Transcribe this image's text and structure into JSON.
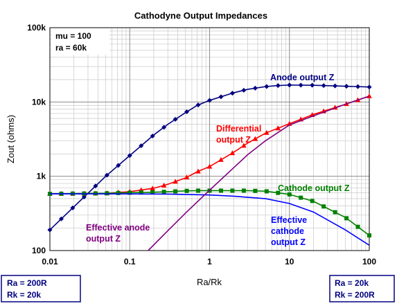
{
  "chart_data": {
    "type": "line",
    "title": "Cathodyne Output Impedances",
    "xlabel": "Ra/Rk",
    "ylabel": "Zout (ohms)",
    "x_scale": "log",
    "y_scale": "log",
    "xlim": [
      0.01,
      100
    ],
    "ylim": [
      100,
      100000
    ],
    "grid": true,
    "x_ticks": [
      "0.01",
      "0.1",
      "1",
      "10",
      "100"
    ],
    "y_ticks": [
      "100",
      "1k",
      "10k",
      "100k"
    ],
    "params": [
      "mu = 100",
      "ra = 60k"
    ],
    "corner_labels": {
      "left": [
        "Ra = 200R",
        "Rk = 20k"
      ],
      "right": [
        "Ra = 20k",
        "Rk = 200R"
      ]
    },
    "series": [
      {
        "name": "Anode output Z",
        "color": "#000080",
        "marker": "diamond",
        "points": [
          [
            0.01,
            190
          ],
          [
            0.05,
            1000
          ],
          [
            0.1,
            1900
          ],
          [
            0.2,
            3600
          ],
          [
            0.3,
            5000
          ],
          [
            0.5,
            7200
          ],
          [
            0.7,
            9000
          ],
          [
            1,
            10500
          ],
          [
            2,
            13300
          ],
          [
            3,
            14800
          ],
          [
            5,
            16100
          ],
          [
            7,
            16600
          ],
          [
            10,
            16900
          ],
          [
            20,
            16800
          ],
          [
            50,
            16300
          ],
          [
            100,
            15900
          ]
        ]
      },
      {
        "name": "Differential output Z",
        "color": "#ff0000",
        "marker": "triangle",
        "points": [
          [
            0.01,
            580
          ],
          [
            0.05,
            590
          ],
          [
            0.1,
            620
          ],
          [
            0.2,
            690
          ],
          [
            0.3,
            780
          ],
          [
            0.5,
            950
          ],
          [
            0.7,
            1150
          ],
          [
            1,
            1350
          ],
          [
            2,
            2100
          ],
          [
            3,
            2800
          ],
          [
            5,
            3800
          ],
          [
            10,
            5100
          ],
          [
            20,
            6800
          ],
          [
            50,
            9300
          ],
          [
            100,
            12000
          ]
        ]
      },
      {
        "name": "Cathode output Z",
        "color": "#008000",
        "marker": "square",
        "points": [
          [
            0.01,
            580
          ],
          [
            0.05,
            590
          ],
          [
            0.1,
            600
          ],
          [
            0.2,
            610
          ],
          [
            0.3,
            620
          ],
          [
            0.5,
            635
          ],
          [
            0.7,
            640
          ],
          [
            1,
            640
          ],
          [
            2,
            640
          ],
          [
            3,
            640
          ],
          [
            5,
            630
          ],
          [
            7,
            600
          ],
          [
            10,
            570
          ],
          [
            20,
            460
          ],
          [
            50,
            280
          ],
          [
            100,
            160
          ]
        ]
      },
      {
        "name": "Effective cathode output Z",
        "color": "#0000ff",
        "marker": "none",
        "points": [
          [
            0.01,
            580
          ],
          [
            0.1,
            578
          ],
          [
            0.3,
            575
          ],
          [
            1,
            560
          ],
          [
            2,
            540
          ],
          [
            5,
            500
          ],
          [
            10,
            430
          ],
          [
            20,
            330
          ],
          [
            50,
            190
          ],
          [
            100,
            118
          ]
        ]
      },
      {
        "name": "Effective anode output Z",
        "color": "#800080",
        "marker": "none",
        "points": [
          [
            0.17,
            100
          ],
          [
            0.3,
            185
          ],
          [
            0.5,
            320
          ],
          [
            1,
            650
          ],
          [
            2,
            1300
          ],
          [
            3,
            1950
          ],
          [
            5,
            3000
          ],
          [
            10,
            4900
          ],
          [
            20,
            6500
          ],
          [
            50,
            9300
          ],
          [
            100,
            12000
          ]
        ]
      }
    ],
    "annotations": [
      {
        "series": 0,
        "lines": [
          "Anode output Z"
        ]
      },
      {
        "series": 1,
        "lines": [
          "Differential",
          "output Z"
        ]
      },
      {
        "series": 2,
        "lines": [
          "Cathode output Z"
        ]
      },
      {
        "series": 4,
        "lines": [
          "Effective anode",
          "output Z"
        ]
      },
      {
        "series": 3,
        "lines": [
          "Effective",
          "cathode",
          "output Z"
        ]
      }
    ]
  }
}
